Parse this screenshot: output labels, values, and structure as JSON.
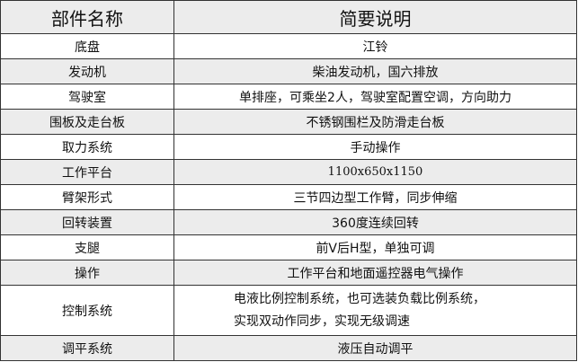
{
  "header": {
    "col1": "部件名称",
    "col2": "简要说明"
  },
  "rows": [
    {
      "name": "底盘",
      "desc": "江铃"
    },
    {
      "name": "发动机",
      "desc": "柴油发动机，国六排放"
    },
    {
      "name": "驾驶室",
      "desc": "单排座，可乘坐2人，驾驶室配置空调，方向助力"
    },
    {
      "name": "围板及走台板",
      "desc": "不锈钢围栏及防滑走台板"
    },
    {
      "name": "取力系统",
      "desc": "手动操作"
    },
    {
      "name": "工作平台",
      "desc": "1100x650x1150"
    },
    {
      "name": "臂架形式",
      "desc": "三节四边型工作臂，同步伸缩"
    },
    {
      "name": "回转装置",
      "desc": "360度连续回转"
    },
    {
      "name": "支腿",
      "desc": "前V后H型，单独可调"
    },
    {
      "name": "操作",
      "desc": "工作平台和地面遥控器电气操作"
    },
    {
      "name": "控制系统",
      "desc": "电液比例控制系统，也可选装负载比例系统，",
      "desc2": "实现双动作同步，实现无级调速"
    },
    {
      "name": "调平系统",
      "desc": "液压自动调平"
    }
  ]
}
